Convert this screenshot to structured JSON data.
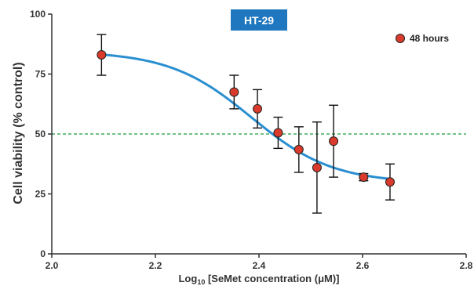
{
  "chart_data": {
    "type": "scatter",
    "title": "HT-29",
    "title_bg_color": "#1f78bf",
    "xlabel_parts": {
      "pre": "Log",
      "sub": "10",
      "post": " [SeMet concentration (μM)]"
    },
    "ylabel": "Cell viability (% control)",
    "xlim": [
      2.0,
      2.8
    ],
    "ylim": [
      0,
      100
    ],
    "xticks": [
      2.0,
      2.2,
      2.4,
      2.6,
      2.8
    ],
    "xtick_labels": [
      "2.0",
      "2.2",
      "2.4",
      "2.6",
      "2.8"
    ],
    "yticks": [
      0,
      25,
      50,
      75,
      100
    ],
    "ytick_labels": [
      "0",
      "25",
      "50",
      "75",
      "100"
    ],
    "grid": false,
    "legend_position": "top-right",
    "reference_line": {
      "y": 50,
      "style": "dashed",
      "color": "#1a9a3a"
    },
    "series": [
      {
        "name": "48 hours",
        "marker_color": "#d93a2b",
        "points": [
          {
            "x": 2.096,
            "y": 83.0,
            "err": 8.5
          },
          {
            "x": 2.352,
            "y": 67.5,
            "err": 7.0
          },
          {
            "x": 2.397,
            "y": 60.5,
            "err": 8.0
          },
          {
            "x": 2.437,
            "y": 50.5,
            "err": 6.5
          },
          {
            "x": 2.477,
            "y": 43.5,
            "err": 9.5
          },
          {
            "x": 2.512,
            "y": 36.0,
            "err": 19.0
          },
          {
            "x": 2.544,
            "y": 47.0,
            "err": 15.0
          },
          {
            "x": 2.602,
            "y": 32.0,
            "err": 1.5
          },
          {
            "x": 2.653,
            "y": 30.0,
            "err": 7.5
          }
        ],
        "fit": {
          "color": "#2a8fd0",
          "x_range": [
            2.096,
            2.653
          ],
          "top": 84.5,
          "bottom": 29.5,
          "logIC50": 2.385,
          "hill_slope": -5.5
        }
      }
    ]
  }
}
